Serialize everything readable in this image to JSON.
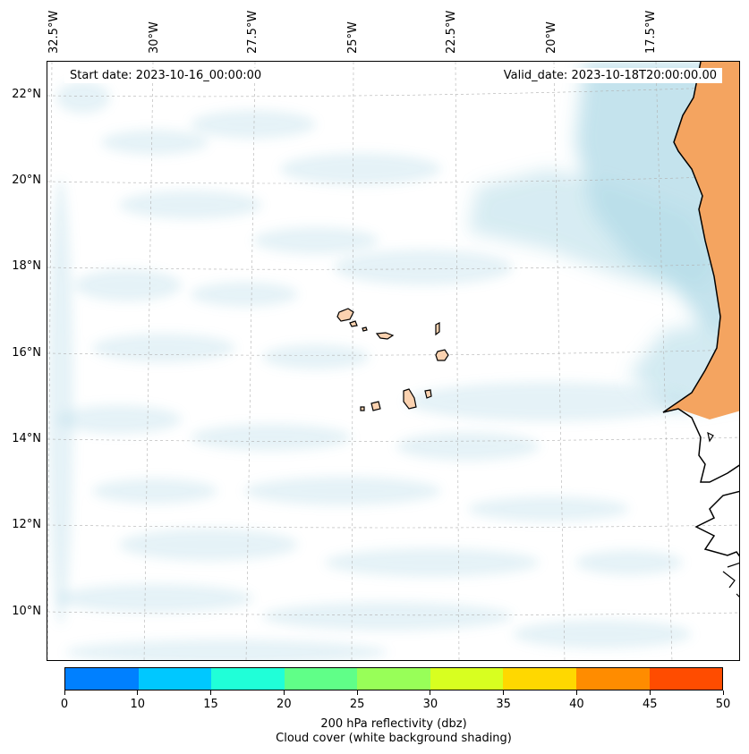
{
  "map": {
    "start_date": "Start date: 2023-10-16_00:00:00",
    "valid_date": "Valid_date: 2023-10-18T20:00:00.00",
    "longitude_labels": [
      "32.5°W",
      "30°W",
      "27.5°W",
      "25°W",
      "22.5°W",
      "20°W",
      "17.5°W"
    ],
    "latitude_labels": [
      "22°N",
      "20°N",
      "18°N",
      "16°N",
      "14°N",
      "12°N",
      "10°N"
    ],
    "colors": {
      "land": "#f4a460",
      "island_fill": "#fbd2b0",
      "cloud": "#add8e6",
      "gridline": "#b0b0b0",
      "coastline": "#000000"
    }
  },
  "colorbar": {
    "colors": [
      "#0080ff",
      "#00c8ff",
      "#20ffd8",
      "#60ff88",
      "#98ff58",
      "#d8ff20",
      "#ffd800",
      "#ff8c00",
      "#ff4c00"
    ],
    "tick_labels": [
      "0",
      "10",
      "15",
      "20",
      "25",
      "30",
      "35",
      "40",
      "45",
      "50"
    ],
    "label_line1": "200 hPa reflectivity (dbz)",
    "label_line2": "Cloud cover (white background shading)"
  }
}
